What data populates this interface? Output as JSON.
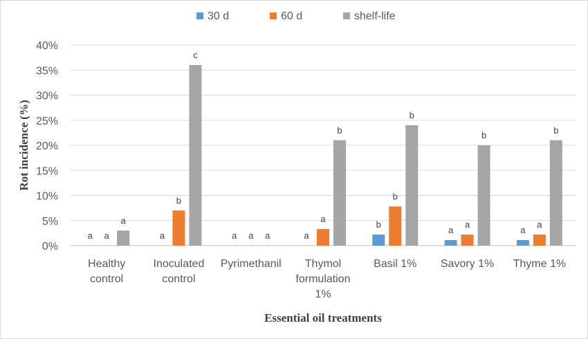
{
  "chart_data": {
    "type": "bar",
    "title": "",
    "xlabel": "Essential oil treatments",
    "ylabel": "Rot incidence (%)",
    "ylim": [
      0,
      40
    ],
    "yticks": [
      "0%",
      "5%",
      "10%",
      "15%",
      "20%",
      "25%",
      "30%",
      "35%",
      "40%"
    ],
    "grid": true,
    "legend_position": "top",
    "categories": [
      [
        "Healthy",
        "control"
      ],
      [
        "Inoculated",
        "control"
      ],
      [
        "Pyrimethanil"
      ],
      [
        "Thymol",
        "formulation",
        "1%"
      ],
      [
        "Basil 1%"
      ],
      [
        "Savory 1%"
      ],
      [
        "Thyme 1%"
      ]
    ],
    "series": [
      {
        "name": "30 d",
        "color": "#5b9bd5",
        "values": [
          0,
          0,
          0,
          0,
          2.2,
          1.1,
          1.1
        ],
        "labels": [
          "a",
          "a",
          "a",
          "a",
          "b",
          "a",
          "a"
        ]
      },
      {
        "name": "60 d",
        "color": "#ed7d31",
        "values": [
          0,
          7,
          0,
          3.3,
          7.8,
          2.2,
          2.2
        ],
        "labels": [
          "a",
          "b",
          "a",
          "a",
          "b",
          "a",
          "a"
        ]
      },
      {
        "name": "shelf-life",
        "color": "#a5a5a5",
        "values": [
          3,
          36,
          0,
          21,
          24,
          20,
          21
        ],
        "labels": [
          "a",
          "c",
          "a",
          "b",
          "b",
          "b",
          "b"
        ]
      }
    ]
  }
}
